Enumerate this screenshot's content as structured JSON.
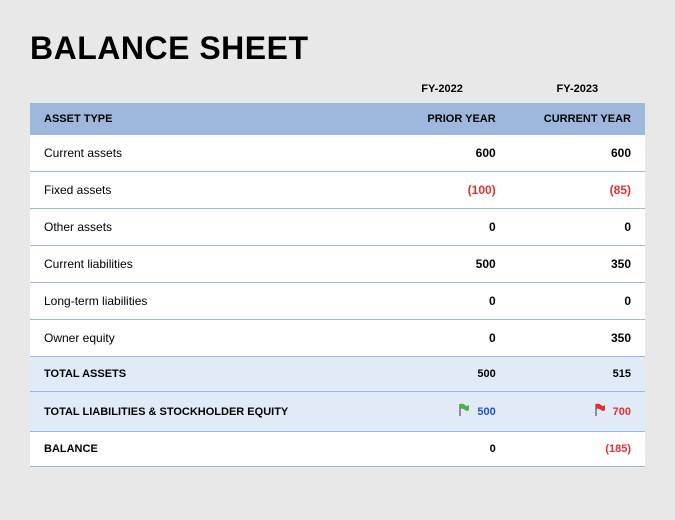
{
  "title": "BALANCE SHEET",
  "years": {
    "prior": "FY-2022",
    "current": "FY-2023"
  },
  "header": {
    "label": "ASSET TYPE",
    "prior": "PRIOR YEAR",
    "current": "CURRENT YEAR"
  },
  "colors": {
    "header_bg": "#9db8dc",
    "summary_bg": "#e1ebf7",
    "row_border": "#9db8dc",
    "negative": "#e03131",
    "highlight_blue": "#1f4fd6",
    "page_bg": "#e8e8e8"
  },
  "rows": [
    {
      "label": "Current assets",
      "prior": "600",
      "current": "600",
      "prior_neg": false,
      "current_neg": false
    },
    {
      "label": "Fixed assets",
      "prior": "(100)",
      "current": "(85)",
      "prior_neg": true,
      "current_neg": true
    },
    {
      "label": "Other assets",
      "prior": "0",
      "current": "0",
      "prior_neg": false,
      "current_neg": false
    },
    {
      "label": "Current liabilities",
      "prior": "500",
      "current": "350",
      "prior_neg": false,
      "current_neg": false
    },
    {
      "label": "Long-term liabilities",
      "prior": "0",
      "current": "0",
      "prior_neg": false,
      "current_neg": false
    },
    {
      "label": "Owner equity",
      "prior": "0",
      "current": "350",
      "prior_neg": false,
      "current_neg": false
    }
  ],
  "totals": {
    "assets": {
      "label": "TOTAL ASSETS",
      "prior": "500",
      "current": "515"
    },
    "liab": {
      "label": "TOTAL LIABILITIES & STOCKHOLDER EQUITY",
      "prior": "500",
      "current": "700",
      "prior_flag": "green",
      "current_flag": "red",
      "prior_color": "blue",
      "current_color": "neg"
    },
    "balance": {
      "label": "BALANCE",
      "prior": "0",
      "current": "(185)",
      "current_neg": true
    }
  },
  "flag_colors": {
    "green": "#4caf50",
    "red": "#e03131",
    "pole": "#555"
  }
}
